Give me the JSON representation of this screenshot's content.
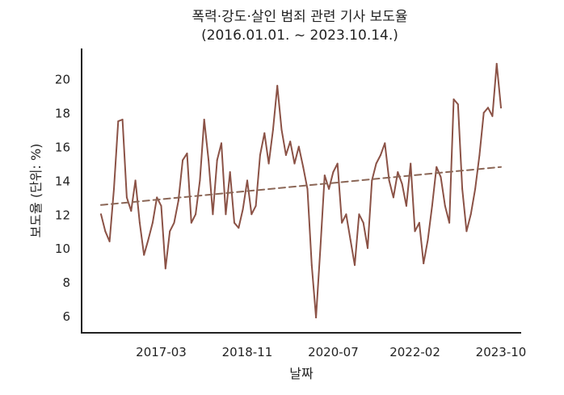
{
  "chart_data": {
    "type": "line",
    "title": [
      "폭력·강도·살인 범죄 관련 기사 보도율",
      "(2016.01.01. ~ 2023.10.14.)"
    ],
    "xlabel": "날짜",
    "ylabel": "보도율 (단위: %)",
    "x_range": [
      "2016-01",
      "2023-10"
    ],
    "x_ticks": [
      "2017-03",
      "2018-11",
      "2020-07",
      "2022-02",
      "2023-10"
    ],
    "ylim": [
      5.0,
      21.8
    ],
    "y_ticks": [
      "6",
      "8",
      "10",
      "12",
      "14",
      "16",
      "18",
      "20"
    ],
    "grid": false,
    "legend": "none",
    "colors": {
      "series": "#8b5246",
      "trend": "#8b6656",
      "axis": "#222222"
    },
    "series": [
      {
        "style": "solid",
        "x": [
          "2016-01",
          "2016-02",
          "2016-03",
          "2016-04",
          "2016-05",
          "2016-06",
          "2016-07",
          "2016-08",
          "2016-09",
          "2016-10",
          "2016-11",
          "2016-12",
          "2017-01",
          "2017-02",
          "2017-03",
          "2017-04",
          "2017-05",
          "2017-06",
          "2017-07",
          "2017-08",
          "2017-09",
          "2017-10",
          "2017-11",
          "2017-12",
          "2018-01",
          "2018-02",
          "2018-03",
          "2018-04",
          "2018-05",
          "2018-06",
          "2018-07",
          "2018-08",
          "2018-09",
          "2018-10",
          "2018-11",
          "2018-12",
          "2019-01",
          "2019-02",
          "2019-03",
          "2019-04",
          "2019-05",
          "2019-06",
          "2019-07",
          "2019-08",
          "2019-09",
          "2019-10",
          "2019-11",
          "2019-12",
          "2020-01",
          "2020-02",
          "2020-03",
          "2020-04",
          "2020-05",
          "2020-06",
          "2020-07",
          "2020-08",
          "2020-09",
          "2020-10",
          "2020-11",
          "2020-12",
          "2021-01",
          "2021-02",
          "2021-03",
          "2021-04",
          "2021-05",
          "2021-06",
          "2021-07",
          "2021-08",
          "2021-09",
          "2021-10",
          "2021-11",
          "2021-12",
          "2022-01",
          "2022-02",
          "2022-03",
          "2022-04",
          "2022-05",
          "2022-06",
          "2022-07",
          "2022-08",
          "2022-09",
          "2022-10",
          "2022-11",
          "2022-12",
          "2023-01",
          "2023-02",
          "2023-03",
          "2023-04",
          "2023-05",
          "2023-06",
          "2023-07",
          "2023-08",
          "2023-09",
          "2023-10"
        ],
        "values": [
          12.0,
          11.0,
          10.4,
          13.5,
          17.5,
          17.6,
          13.0,
          12.2,
          14.0,
          11.5,
          9.6,
          10.5,
          11.5,
          13.0,
          12.5,
          8.8,
          11.0,
          11.5,
          12.8,
          15.2,
          15.6,
          11.5,
          12.0,
          14.0,
          17.6,
          15.2,
          12.0,
          15.2,
          16.2,
          12.0,
          14.5,
          11.5,
          11.2,
          12.3,
          14.0,
          12.0,
          12.5,
          15.5,
          16.8,
          15.0,
          17.0,
          19.6,
          17.0,
          15.5,
          16.3,
          15.0,
          16.0,
          14.8,
          13.5,
          9.0,
          5.9,
          10.0,
          14.3,
          13.5,
          14.5,
          15.0,
          11.5,
          12.0,
          10.5,
          9.0,
          12.0,
          11.5,
          10.0,
          14.0,
          15.0,
          15.5,
          16.2,
          14.0,
          13.0,
          14.5,
          13.8,
          12.5,
          15.0,
          11.0,
          11.5,
          9.1,
          10.5,
          12.5,
          14.8,
          14.2,
          12.5,
          11.5,
          18.8,
          18.5,
          13.5,
          11.0,
          12.0,
          13.5,
          15.5,
          18.0,
          18.3,
          17.8,
          20.9,
          18.3
        ]
      },
      {
        "style": "dashed",
        "x": [
          "2016-01",
          "2023-10"
        ],
        "values": [
          12.55,
          14.8
        ]
      }
    ]
  }
}
